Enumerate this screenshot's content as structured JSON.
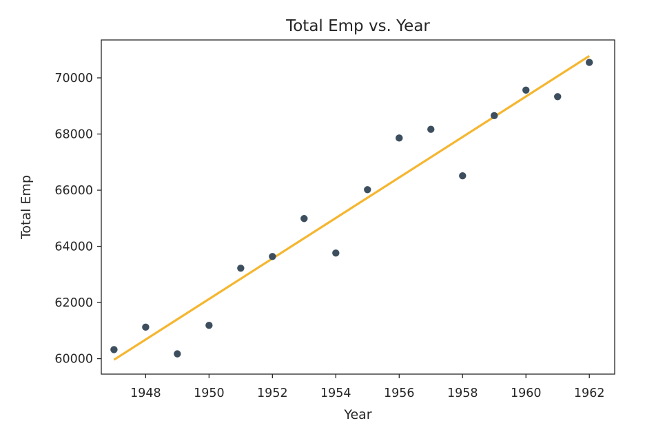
{
  "chart_data": {
    "type": "scatter",
    "title": "Total Emp vs. Year",
    "xlabel": "Year",
    "ylabel": "Total Emp",
    "xlim": [
      1946.6,
      1962.8
    ],
    "ylim": [
      59450,
      71350
    ],
    "x_ticks": [
      1948,
      1950,
      1952,
      1954,
      1956,
      1958,
      1960,
      1962
    ],
    "y_ticks": [
      60000,
      62000,
      64000,
      66000,
      68000,
      70000
    ],
    "grid": false,
    "series": [
      {
        "kind": "scatter",
        "color": "#3d4f5e",
        "x": [
          1947,
          1948,
          1949,
          1950,
          1951,
          1952,
          1953,
          1954,
          1955,
          1956,
          1957,
          1958,
          1959,
          1960,
          1961,
          1962
        ],
        "y": [
          60323,
          61122,
          60171,
          61187,
          63221,
          63639,
          64989,
          63761,
          66019,
          67857,
          68169,
          66513,
          68655,
          69564,
          69331,
          70551
        ]
      },
      {
        "kind": "line",
        "color": "#f5b630",
        "x": [
          1947,
          1962
        ],
        "y": [
          59960,
          70780
        ]
      }
    ]
  }
}
